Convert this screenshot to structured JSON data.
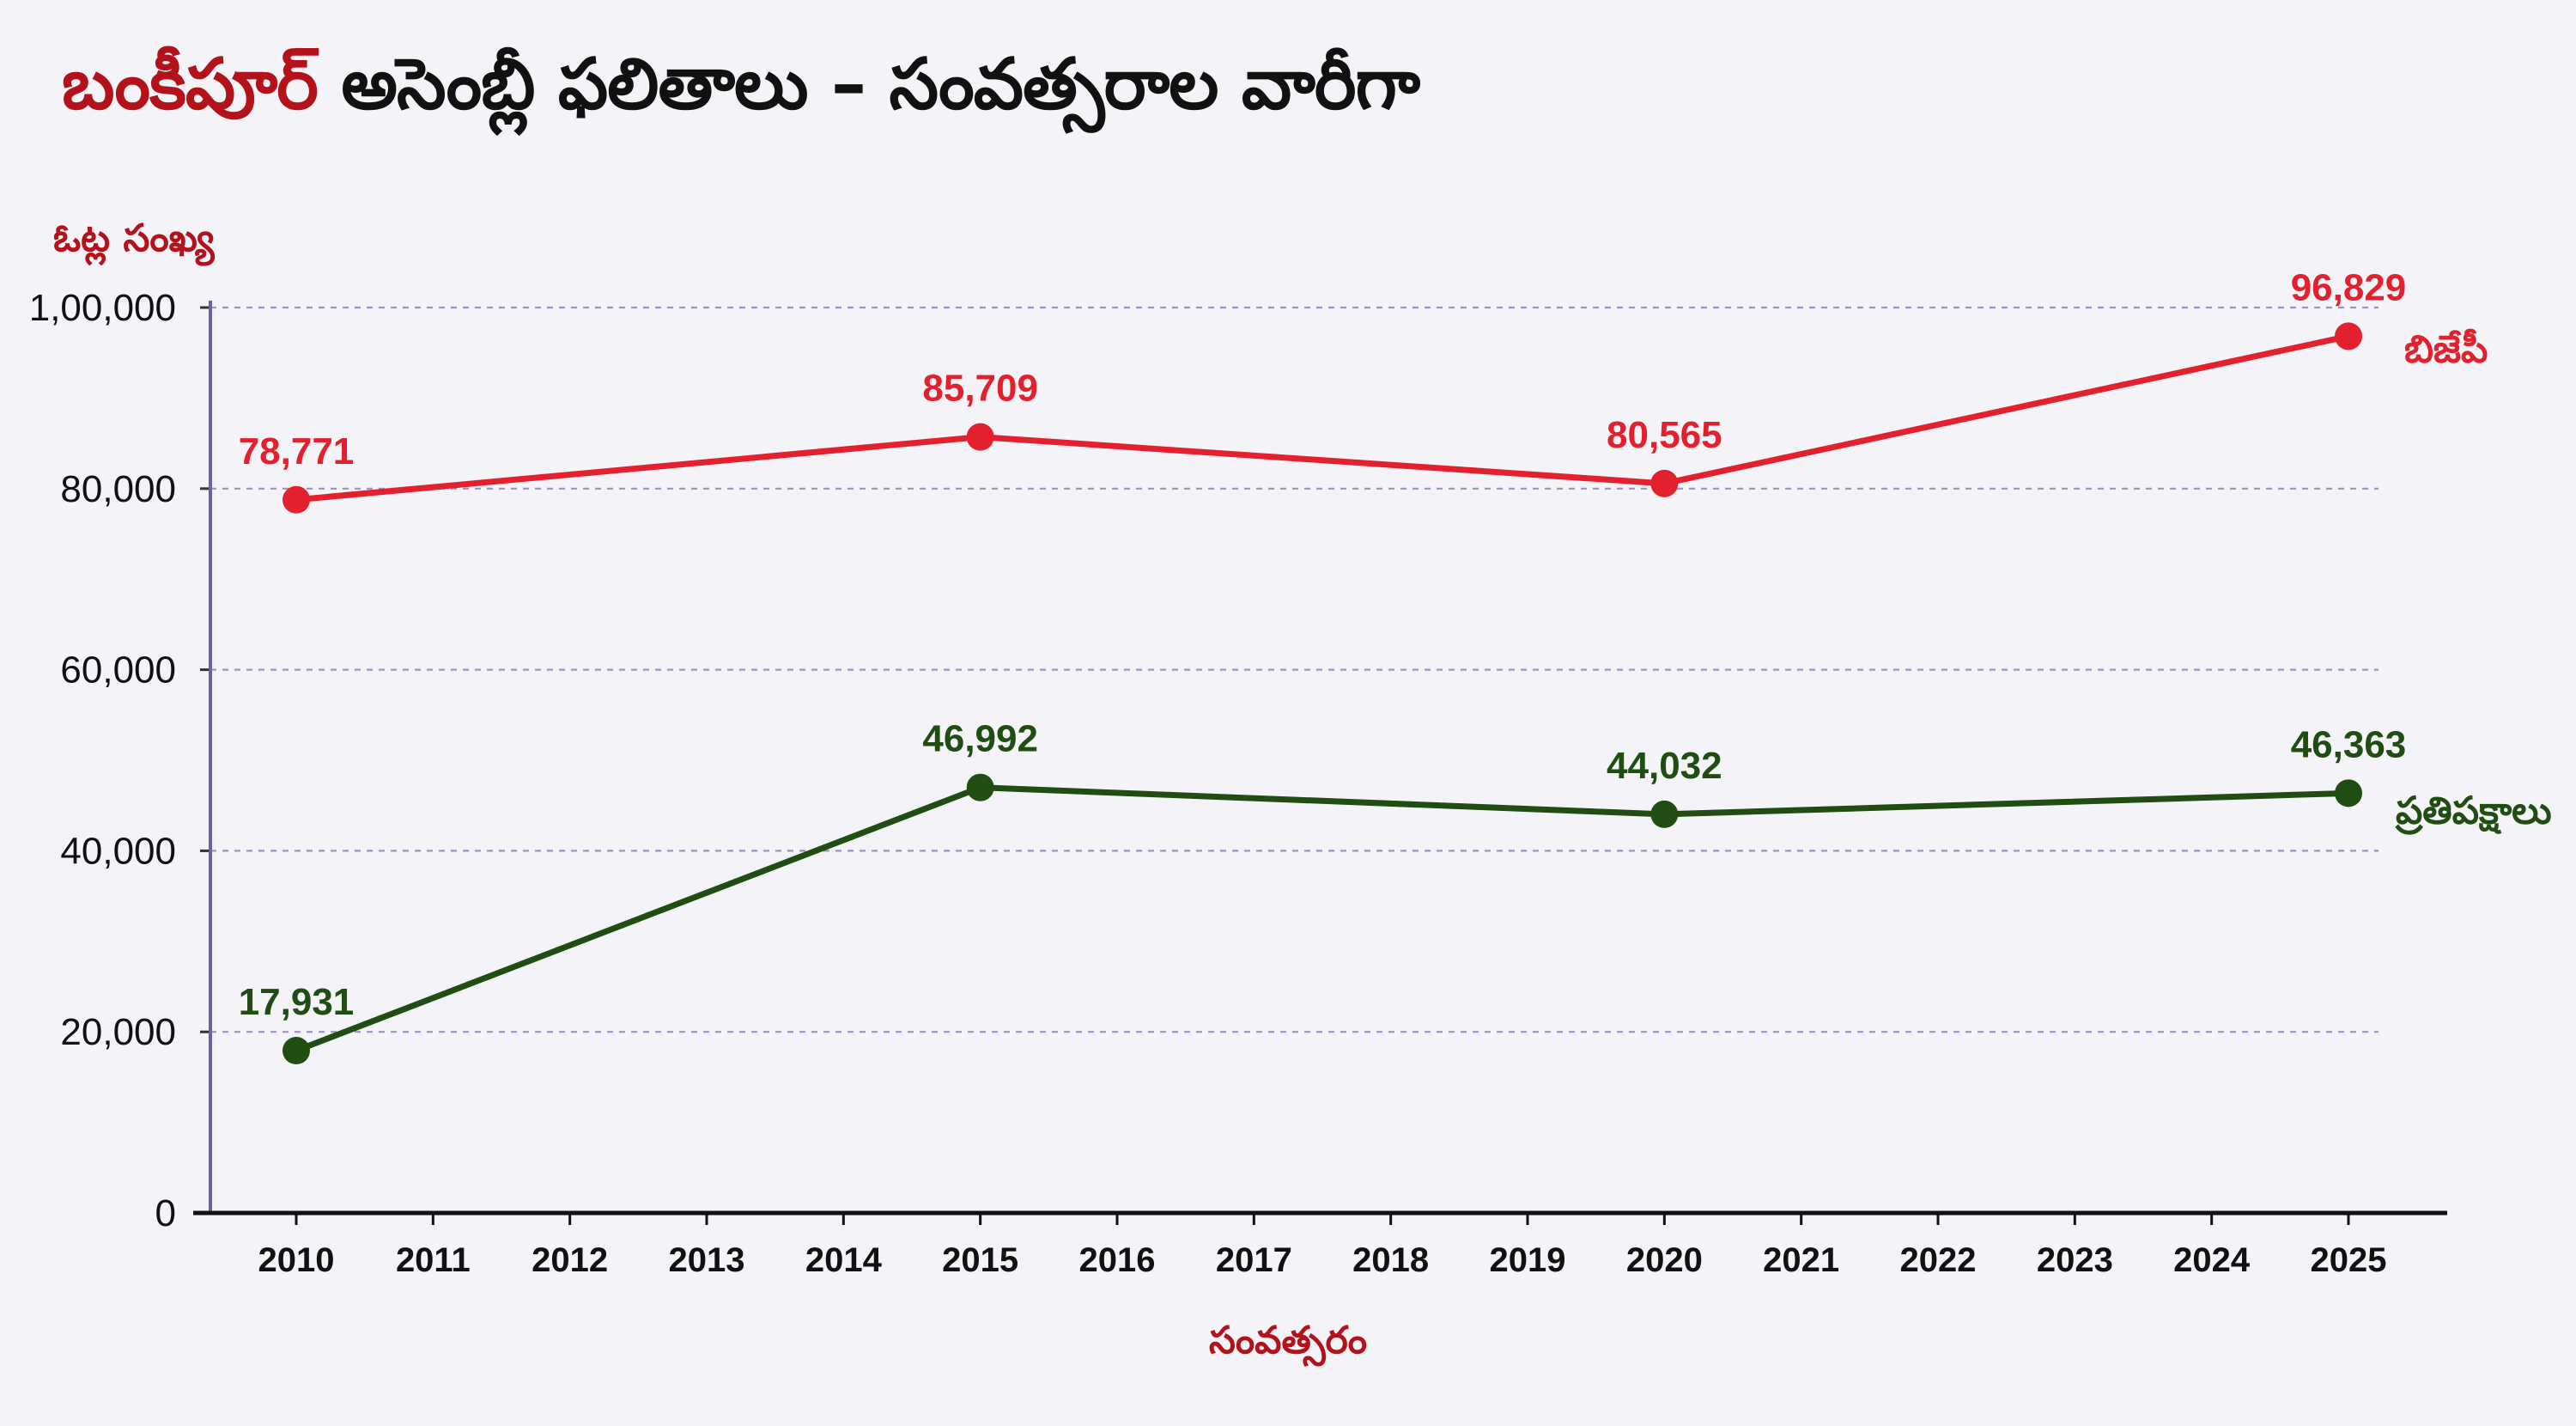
{
  "title": {
    "highlight": "బంకీపూర్",
    "rest": "అసెంబ్లీ ఫలితాలు – సంవత్సరాల వారీగా"
  },
  "colors": {
    "bjp": "#e3202d",
    "opposition": "#1f4d12",
    "title_highlight": "#b3121a",
    "grid": "#9b93c8",
    "axis": "#6f5fa4"
  },
  "chart_data": {
    "type": "line",
    "title": "బంకీపూర్ అసెంబ్లీ ఫలితాలు – సంవత్సరాల వారీగా",
    "xlabel": "సంవత్సరం",
    "ylabel": "ఓట్ల సంఖ్య",
    "x_ticks": [
      "2010",
      "2011",
      "2012",
      "2013",
      "2014",
      "2015",
      "2016",
      "2017",
      "2018",
      "2019",
      "2020",
      "2021",
      "2022",
      "2023",
      "2024",
      "2025"
    ],
    "y_ticks": [
      0,
      20000,
      40000,
      60000,
      80000,
      100000
    ],
    "y_tick_labels": [
      "0",
      "20,000",
      "40,000",
      "60,000",
      "80,000",
      "1,00,000"
    ],
    "ylim": [
      0,
      100000
    ],
    "xlim": [
      2010,
      2025
    ],
    "grid": "horizontal dashed",
    "series": [
      {
        "name": "బిజేపీ",
        "color": "#e3202d",
        "x": [
          2010,
          2015,
          2020,
          2025
        ],
        "values": [
          78771,
          85709,
          80565,
          96829
        ],
        "labels": [
          "78,771",
          "85,709",
          "80,565",
          "96,829"
        ]
      },
      {
        "name": "ప్రతిపక్షాలు",
        "color": "#1f4d12",
        "x": [
          2010,
          2015,
          2020,
          2025
        ],
        "values": [
          17931,
          46992,
          44032,
          46363
        ],
        "labels": [
          "17,931",
          "46,992",
          "44,032",
          "46,363"
        ]
      }
    ]
  }
}
